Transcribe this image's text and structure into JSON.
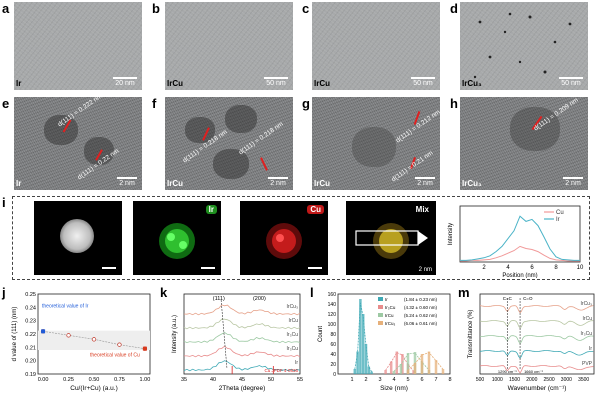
{
  "panels": {
    "a": {
      "letter": "a",
      "sample": "Ir",
      "scale": "20 nm"
    },
    "b": {
      "letter": "b",
      "sample": "IrCu",
      "scale": "50 nm"
    },
    "c": {
      "letter": "c",
      "sample": "IrCu",
      "scale": "50 nm"
    },
    "d": {
      "letter": "d",
      "sample": "IrCu₃",
      "scale": "50 nm"
    },
    "e": {
      "letter": "e",
      "sample": "Ir",
      "scale": "2 nm",
      "d1": "d(111) = 0.222 nm",
      "d2": "d(111) = 0.22 nm"
    },
    "f": {
      "letter": "f",
      "sample": "IrCu",
      "scale": "2 nm",
      "d1": "d(111) = 0.218 nm",
      "d2": "d(111) = 0.218 nm"
    },
    "g": {
      "letter": "g",
      "sample": "IrCu",
      "scale": "2 nm",
      "d1": "d(111) = 0.212 nm",
      "d2": "d(111) = 0.21 nm"
    },
    "h": {
      "letter": "h",
      "sample": "IrCu₃",
      "scale": "2 nm",
      "d1": "d(111) = 0.209 nm"
    },
    "i": {
      "letter": "i",
      "ir": "Ir",
      "cu": "Cu",
      "mix": "Mix",
      "scale": "2 nm",
      "profile_ylabel": "Intensity",
      "profile_xlabel": "Position (nm)",
      "legend_cu": "Cu",
      "legend_ir": "Ir",
      "xticks": [
        "2",
        "4",
        "6",
        "8",
        "10"
      ]
    },
    "j": {
      "letter": "j"
    },
    "k": {
      "letter": "k"
    },
    "l": {
      "letter": "l"
    },
    "m": {
      "letter": "m"
    }
  },
  "chart_data": [
    {
      "type": "line",
      "panel": "i",
      "xlabel": "Position (nm)",
      "ylabel": "Intensity",
      "xlim": [
        0,
        10
      ],
      "x": [
        0,
        0.5,
        1,
        1.5,
        2,
        2.5,
        3,
        3.5,
        4,
        4.5,
        5,
        5.5,
        6,
        6.5,
        7,
        7.5,
        8,
        8.5,
        9,
        9.5,
        10
      ],
      "series": [
        {
          "name": "Cu",
          "color": "#f19a9a",
          "values": [
            0.02,
            0.02,
            0.03,
            0.03,
            0.04,
            0.05,
            0.08,
            0.12,
            0.17,
            0.22,
            0.3,
            0.26,
            0.24,
            0.2,
            0.13,
            0.07,
            0.04,
            0.03,
            0.02,
            0.02,
            0.02
          ]
        },
        {
          "name": "Ir",
          "color": "#4ab3c7",
          "values": [
            0.03,
            0.03,
            0.04,
            0.06,
            0.08,
            0.12,
            0.2,
            0.3,
            0.45,
            0.6,
            0.88,
            0.78,
            0.82,
            0.7,
            0.48,
            0.25,
            0.1,
            0.05,
            0.04,
            0.03,
            0.03
          ]
        }
      ]
    },
    {
      "type": "scatter",
      "panel": "j",
      "xlabel": "Cu/(Ir+Cu) (a.u.)",
      "ylabel": "d value of (111) (nm)",
      "xlim": [
        -0.05,
        1.05
      ],
      "ylim": [
        0.19,
        0.25
      ],
      "xticks": [
        "0.00",
        "0.25",
        "0.50",
        "0.75",
        "1.00"
      ],
      "yticks": [
        "0.19",
        "0.20",
        "0.21",
        "0.22",
        "0.23",
        "0.24",
        "0.25"
      ],
      "annotations": [
        "theoretical value of Ir",
        "theoretical value of Cu"
      ],
      "x": [
        0,
        0.25,
        0.5,
        0.75,
        1.0
      ],
      "values": [
        0.222,
        0.219,
        0.216,
        0.212,
        0.209
      ],
      "theoretical": {
        "Ir": 0.222,
        "Cu": 0.209
      }
    },
    {
      "type": "line",
      "panel": "k",
      "xlabel": "2Theta (degree)",
      "ylabel": "Intensity (a.u.)",
      "xlim": [
        35,
        55
      ],
      "xticks": [
        "35",
        "40",
        "45",
        "50",
        "55"
      ],
      "annotations": [
        "(111)",
        "(200)",
        "Cu JPDF 4-0836"
      ],
      "series": [
        {
          "name": "IrCu₃",
          "color": "#e6a28a"
        },
        {
          "name": "IrCu",
          "color": "#b9c7a4"
        },
        {
          "name": "Ir₃Cu",
          "color": "#9dc9a3"
        },
        {
          "name": "Ir₃Cu",
          "color": "#e88c8c"
        },
        {
          "name": "Ir",
          "color": "#3fa9b5"
        }
      ]
    },
    {
      "type": "bar",
      "panel": "l",
      "xlabel": "Size (nm)",
      "ylabel": "Count",
      "xlim": [
        0,
        8
      ],
      "ylim": [
        0,
        160
      ],
      "xticks": [
        "1",
        "2",
        "3",
        "4",
        "5",
        "6",
        "7",
        "8"
      ],
      "yticks": [
        "0",
        "20",
        "40",
        "60",
        "80",
        "100",
        "120",
        "140",
        "160"
      ],
      "legend": [
        {
          "name": "Ir",
          "text": "(1.84 ± 0.23 nm)",
          "color": "#3fa9b5"
        },
        {
          "name": "Ir₃Cu",
          "text": "(4.32 ± 0.60 nm)",
          "color": "#e88c8c"
        },
        {
          "name": "IrCu",
          "text": "(5.24 ± 0.62 nm)",
          "color": "#9dc9a3"
        },
        {
          "name": "IrCu₃",
          "text": "(6.06 ± 0.61 nm)",
          "color": "#e6b07a"
        }
      ],
      "bars": [
        {
          "series": "Ir",
          "x": [
            1.2,
            1.4,
            1.6,
            1.8,
            2.0,
            2.2,
            2.4
          ],
          "values": [
            10,
            45,
            150,
            120,
            60,
            15,
            5
          ]
        },
        {
          "series": "Ir₃Cu",
          "x": [
            3.4,
            3.8,
            4.2,
            4.6,
            5.0,
            5.4
          ],
          "values": [
            8,
            25,
            45,
            40,
            20,
            6
          ]
        },
        {
          "series": "IrCu",
          "x": [
            4.0,
            4.5,
            5.0,
            5.5,
            6.0,
            6.5
          ],
          "values": [
            6,
            20,
            42,
            44,
            25,
            8
          ]
        },
        {
          "series": "IrCu₃",
          "x": [
            5.0,
            5.5,
            6.0,
            6.5,
            7.0,
            7.5
          ],
          "values": [
            8,
            22,
            40,
            45,
            28,
            10
          ]
        }
      ]
    },
    {
      "type": "line",
      "panel": "m",
      "xlabel": "Wavenumber (cm⁻¹)",
      "ylabel": "Transmittance (%)",
      "xlim": [
        500,
        3800
      ],
      "xticks": [
        "500",
        "1000",
        "1500",
        "2000",
        "2500",
        "3000",
        "3500"
      ],
      "annotations": [
        "C=C",
        "C=O",
        "1290 cm⁻¹",
        "1660 cm⁻¹"
      ],
      "series": [
        {
          "name": "IrCu₃",
          "color": "#e6a28a"
        },
        {
          "name": "IrCu",
          "color": "#b9c7a4"
        },
        {
          "name": "Ir₃Cu",
          "color": "#9dc9a3"
        },
        {
          "name": "Ir",
          "color": "#3fa9b5"
        },
        {
          "name": "PVP",
          "color": "#e88c8c"
        }
      ]
    }
  ]
}
